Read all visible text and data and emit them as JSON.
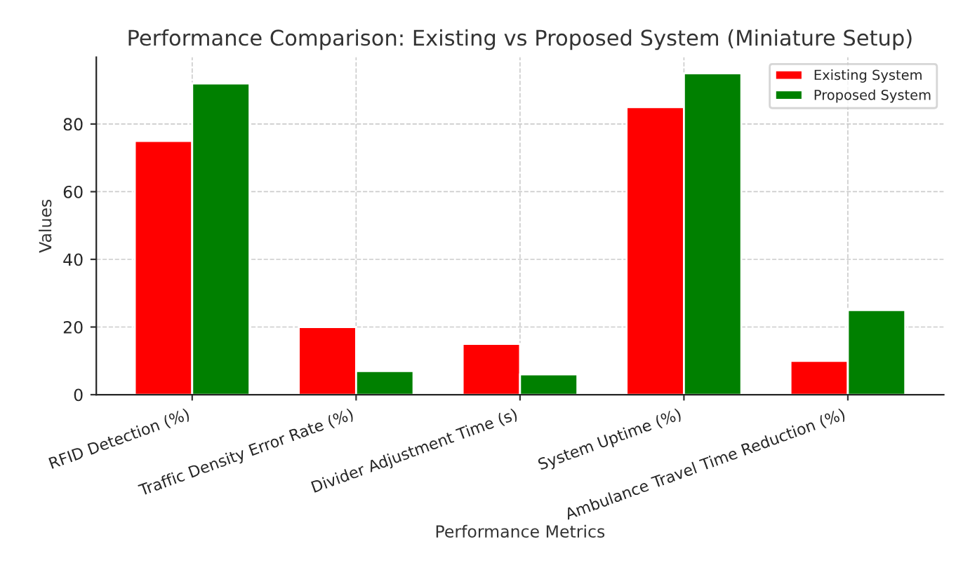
{
  "chart_data": {
    "type": "bar",
    "title": "Performance Comparison: Existing vs Proposed System (Miniature Setup)",
    "xlabel": "Performance Metrics",
    "ylabel": "Values",
    "categories": [
      "RFID Detection (%)",
      "Traffic Density Error Rate (%)",
      "Divider Adjustment Time (s)",
      "System Uptime (%)",
      "Ambulance Travel Time Reduction (%)"
    ],
    "series": [
      {
        "name": "Existing System",
        "color": "#ff0000",
        "values": [
          75,
          20,
          15,
          85,
          10
        ]
      },
      {
        "name": "Proposed System",
        "color": "#008000",
        "values": [
          92,
          7,
          6,
          95,
          25
        ]
      }
    ],
    "ylim": [
      0,
      99.75
    ],
    "yticks": [
      0,
      20,
      40,
      60,
      80
    ],
    "grid": true,
    "legend": "top right"
  }
}
